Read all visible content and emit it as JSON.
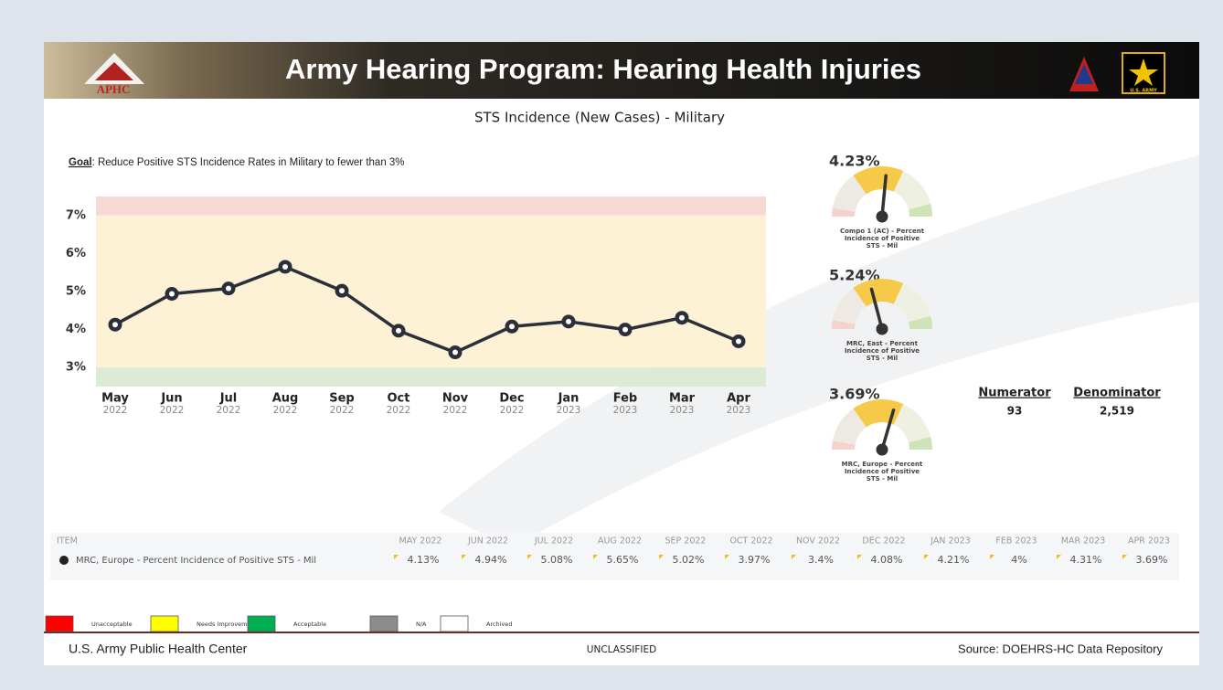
{
  "header": {
    "logo_text": "APHC",
    "title": "Army Hearing Program:  Hearing Health Injuries",
    "army_logo_text": "U.S. ARMY"
  },
  "subtitle": "STS Incidence (New Cases) - Military",
  "goal_label": "Goal",
  "goal_text": ": Reduce Positive STS Incidence Rates in Military to fewer than 3%",
  "chart_data": {
    "type": "line",
    "categories": [
      "May",
      "Jun",
      "Jul",
      "Aug",
      "Sep",
      "Oct",
      "Nov",
      "Dec",
      "Jan",
      "Feb",
      "Mar",
      "Apr"
    ],
    "category_years": [
      "2022",
      "2022",
      "2022",
      "2022",
      "2022",
      "2022",
      "2022",
      "2022",
      "2023",
      "2023",
      "2023",
      "2023"
    ],
    "values": [
      4.13,
      4.94,
      5.08,
      5.65,
      5.02,
      3.97,
      3.4,
      4.08,
      4.21,
      4,
      4.31,
      3.69
    ],
    "color": "#2b2f3a",
    "ylim": [
      2.5,
      7.5
    ],
    "yticks": [
      {
        "value": 3,
        "label": "3%"
      },
      {
        "value": 4,
        "label": "4%"
      },
      {
        "value": 5,
        "label": "5%"
      },
      {
        "value": 6,
        "label": "6%"
      },
      {
        "value": 7,
        "label": "7%"
      }
    ],
    "bands": [
      {
        "from": 7,
        "to": 7.5,
        "color": "#f7d9d3"
      },
      {
        "from": 3,
        "to": 7,
        "color": "#fdf1d6"
      },
      {
        "from": 2.5,
        "to": 3,
        "color": "#dcebd5"
      }
    ]
  },
  "gauges": [
    {
      "value": 4.23,
      "value_label": "4.23%",
      "label_lines": [
        "Compo 1 (AC) - Percent",
        "Incidence of Positive",
        "STS - Mil"
      ]
    },
    {
      "value": 5.24,
      "value_label": "5.24%",
      "label_lines": [
        "MRC, East - Percent",
        "Incidence of Positive",
        "STS - Mil"
      ]
    },
    {
      "value": 3.69,
      "value_label": "3.69%",
      "label_lines": [
        "MRC, Europe - Percent",
        "Incidence of Positive",
        "STS - Mil"
      ]
    }
  ],
  "counts": {
    "numerator_label": "Numerator",
    "numerator": "93",
    "denominator_label": "Denominator",
    "denominator": "2,519"
  },
  "table": {
    "header": [
      "ITEM",
      "MAY 2022",
      "JUN 2022",
      "JUL 2022",
      "AUG 2022",
      "SEP 2022",
      "OCT 2022",
      "NOV 2022",
      "DEC 2022",
      "JAN 2023",
      "FEB 2023",
      "MAR 2023",
      "APR 2023"
    ],
    "rows": [
      [
        "MRC, Europe - Percent Incidence of Positive STS - Mil",
        "4.13%",
        "4.94%",
        "5.08%",
        "5.65%",
        "5.02%",
        "3.97%",
        "3.4%",
        "4.08%",
        "4.21%",
        "4%",
        "4.31%",
        "3.69%"
      ]
    ]
  },
  "legend": [
    {
      "label": "Unacceptable",
      "color": "#ff0000"
    },
    {
      "label": "Needs Improvement",
      "color": "#ffff00"
    },
    {
      "label": "Acceptable",
      "color": "#00b050"
    },
    {
      "label": "N/A",
      "color": "#8c8c8c"
    },
    {
      "label": "Archived",
      "color": "#ffffff"
    }
  ],
  "footer": {
    "left": "U.S. Army Public Health Center",
    "center": "UNCLASSIFIED",
    "right": "Source:  DOEHRS-HC Data Repository"
  }
}
